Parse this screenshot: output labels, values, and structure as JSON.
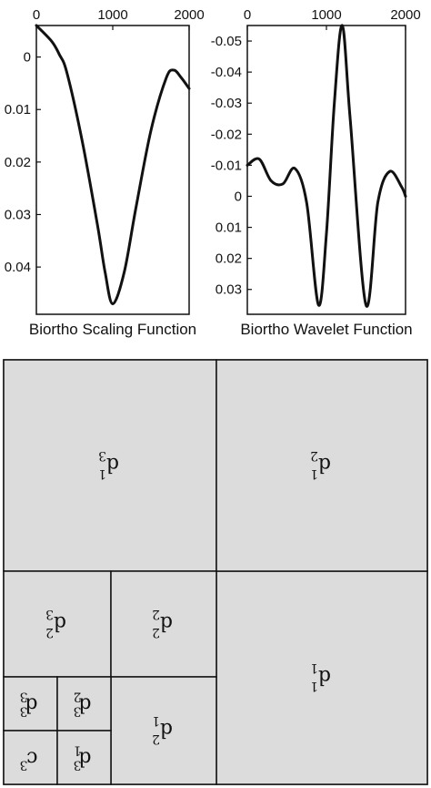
{
  "orientation": "rotated-180",
  "chart_data": [
    {
      "type": "line",
      "title": "",
      "xlabel": "Biortho Scaling Function",
      "x_ticks": [
        "0",
        "1000",
        "2000"
      ],
      "y_ticks": [
        "0",
        "0.01",
        "0.02",
        "0.03",
        "0.04"
      ],
      "xlim": [
        0,
        2000
      ],
      "ylim": [
        -0.006,
        0.049
      ],
      "y_inverted": true,
      "grid": false,
      "series": [
        {
          "x": [
            0,
            200,
            300,
            400,
            600,
            800,
            900,
            1000,
            1150,
            1300,
            1500,
            1700,
            1800,
            1900,
            2000
          ],
          "values": [
            -0.006,
            -0.003,
            -0.0005,
            0.003,
            0.016,
            0.032,
            0.041,
            0.047,
            0.041,
            0.029,
            0.014,
            0.004,
            0.0025,
            0.004,
            0.006
          ]
        }
      ]
    },
    {
      "type": "line",
      "title": "",
      "xlabel": "Biortho Wavelet Function",
      "x_ticks": [
        "0",
        "1000",
        "2000"
      ],
      "y_ticks": [
        "-0.05",
        "-0.04",
        "-0.03",
        "-0.02",
        "-0.01",
        "0",
        "0.01",
        "0.02",
        "0.03"
      ],
      "xlim": [
        0,
        2000
      ],
      "ylim": [
        -0.055,
        0.038
      ],
      "y_inverted": true,
      "grid": false,
      "series": [
        {
          "x": [
            0,
            150,
            300,
            450,
            600,
            750,
            900,
            1000,
            1100,
            1200,
            1300,
            1500,
            1650,
            1800,
            1950,
            2000
          ],
          "values": [
            -0.01,
            -0.012,
            -0.005,
            -0.004,
            -0.009,
            0.002,
            0.035,
            0.012,
            -0.03,
            -0.055,
            -0.025,
            0.035,
            0.002,
            -0.008,
            -0.003,
            0.0
          ]
        }
      ]
    }
  ],
  "decomposition": {
    "cells": [
      {
        "letter": "d",
        "sub": "1",
        "sup": "1",
        "label_full": "d1^1"
      },
      {
        "letter": "d",
        "sub": "3",
        "sup": "1",
        "label_full": "d3^1"
      },
      {
        "letter": "d",
        "sub": "2",
        "sup": "1",
        "label_full": "d2^1"
      },
      {
        "letter": "d",
        "sub": "3",
        "sup": "2",
        "label_full": "d3^2"
      },
      {
        "letter": "d",
        "sub": "2",
        "sup": "2",
        "label_full": "d2^2"
      },
      {
        "letter": "d",
        "sub": "1",
        "sup": "2",
        "label_full": "d1^2"
      },
      {
        "letter": "d",
        "sub": "3",
        "sup": "3",
        "label_full": "d3^3"
      },
      {
        "letter": "d",
        "sub": "2",
        "sup": "3",
        "label_full": "d2^3"
      },
      {
        "letter": "c",
        "sub": "",
        "sup": "3",
        "label_full": "c^3"
      },
      {
        "letter": "d",
        "sub": "1",
        "sup": "3",
        "label_full": "d1^3"
      }
    ]
  },
  "colors": {
    "cell_fill": "#dcdcdc",
    "line": "#111111"
  }
}
